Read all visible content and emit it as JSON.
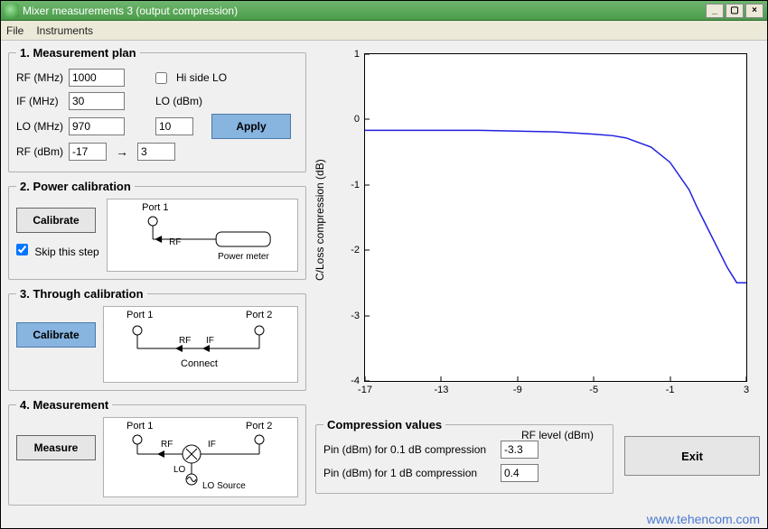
{
  "window": {
    "title": "Mixer measurements 3 (output compression)"
  },
  "menu": {
    "file": "File",
    "instruments": "Instruments"
  },
  "panels": {
    "plan": {
      "legend": "1. Measurement plan",
      "rf_mhz_label": "RF (MHz)",
      "rf_mhz_value": "1000",
      "if_mhz_label": "IF (MHz)",
      "if_mhz_value": "30",
      "lo_mhz_label": "LO (MHz)",
      "lo_mhz_value": "970",
      "rf_dbm_label": "RF (dBm)",
      "rf_dbm_from": "-17",
      "rf_dbm_to": "3",
      "hi_side_label": "Hi side LO",
      "hi_side_checked": false,
      "lo_dbm_label": "LO (dBm)",
      "lo_dbm_value": "10",
      "apply_label": "Apply"
    },
    "power_cal": {
      "legend": "2. Power calibration",
      "calibrate_label": "Calibrate",
      "skip_label": "Skip this step",
      "skip_checked": true,
      "diagram": {
        "port1": "Port 1",
        "rf": "RF",
        "meter": "Power meter"
      }
    },
    "through_cal": {
      "legend": "3. Through calibration",
      "calibrate_label": "Calibrate",
      "diagram": {
        "port1": "Port 1",
        "port2": "Port 2",
        "rf": "RF",
        "if": "IF",
        "connect": "Connect"
      }
    },
    "measurement": {
      "legend": "4. Measurement",
      "measure_label": "Measure",
      "diagram": {
        "port1": "Port 1",
        "port2": "Port 2",
        "rf": "RF",
        "if": "IF",
        "lo": "LO",
        "src": "LO Source"
      }
    },
    "compression": {
      "legend": "Compression values",
      "pin01_label": "Pin (dBm) for 0.1 dB compression",
      "pin01_value": "-3.3",
      "pin1_label": "Pin (dBm) for 1 dB compression",
      "pin1_value": "0.4"
    }
  },
  "buttons": {
    "exit": "Exit"
  },
  "chart": {
    "type": "line",
    "xlabel": "RF level (dBm)",
    "ylabel": "C/Loss compression (dB)",
    "xlim": [
      -17,
      3
    ],
    "ylim": [
      -4,
      1
    ],
    "xticks": [
      -17,
      -13,
      -9,
      -5,
      -1,
      3
    ],
    "yticks": [
      -4,
      -3,
      -2,
      -1,
      0,
      1
    ],
    "background_color": "#ffffff",
    "frame_color": "#000000",
    "line_color": "#2020e0",
    "line_width": 1.5,
    "x_values": [
      -17,
      -15,
      -13,
      -11,
      -9,
      -7,
      -5,
      -4,
      -3.3,
      -2,
      -1,
      0,
      0.4,
      1,
      1.5,
      2,
      2.5,
      3
    ],
    "y_values": [
      0.0,
      0.0,
      0.0,
      0.0,
      -0.01,
      -0.02,
      -0.05,
      -0.07,
      -0.1,
      -0.22,
      -0.42,
      -0.78,
      -1.0,
      -1.3,
      -1.55,
      -1.8,
      -2.0,
      -2.0
    ]
  },
  "watermark": "www.tehencom.com",
  "window_buttons": {
    "min": "_",
    "max": "▢",
    "close": "×"
  },
  "colors": {
    "panel_bg": "#f0f0f0",
    "accent_button": "#88b4e0",
    "titlebar_from": "#6fb66f",
    "titlebar_to": "#4a9c4a"
  }
}
